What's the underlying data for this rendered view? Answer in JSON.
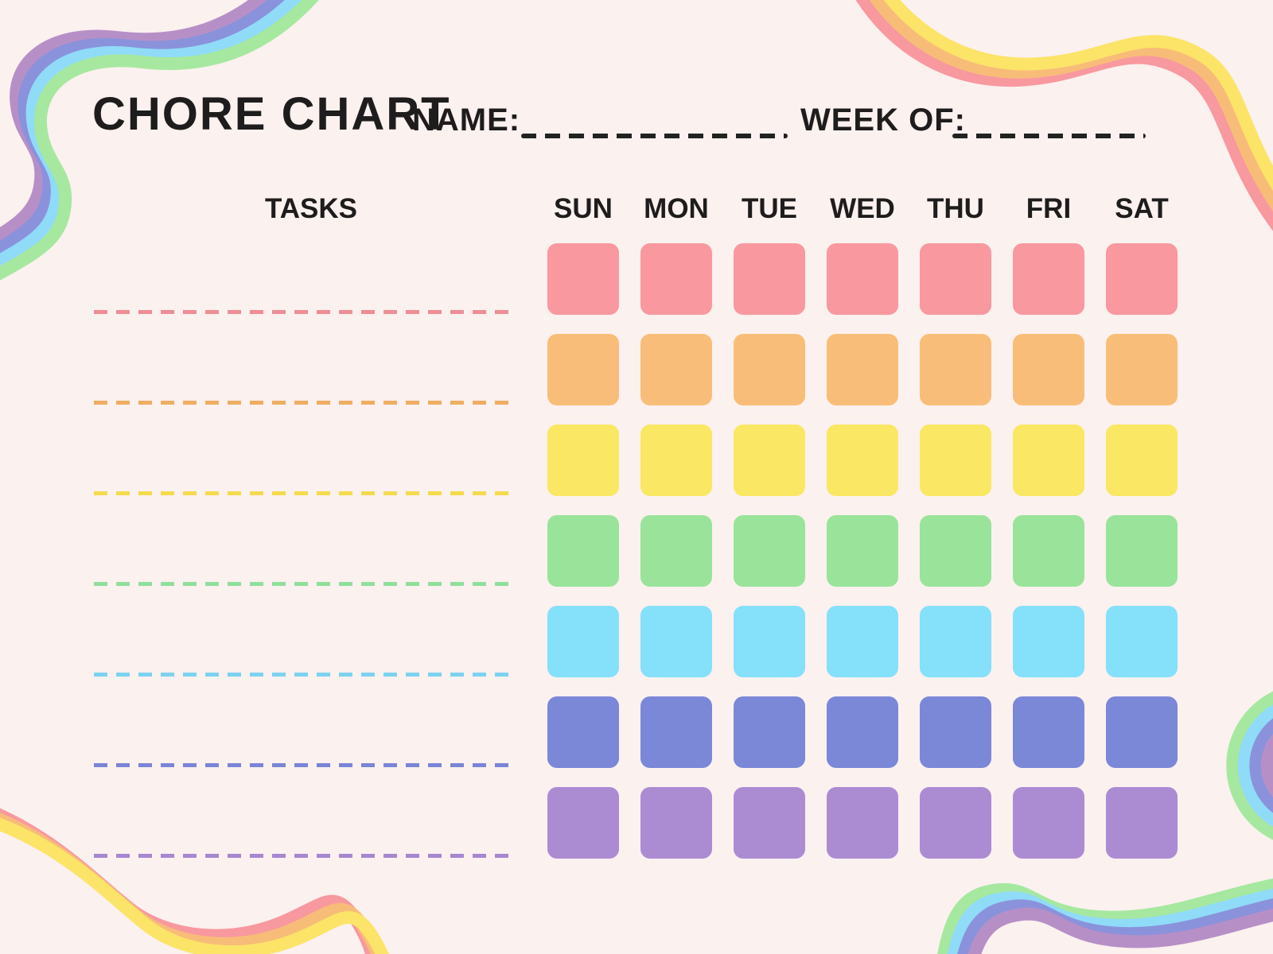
{
  "title": "CHORE CHART",
  "name_field": {
    "label": "NAME:",
    "value": ""
  },
  "week_field": {
    "label": "WEEK OF:",
    "value": ""
  },
  "tasks_header": "TASKS",
  "days": [
    "SUN",
    "MON",
    "TUE",
    "WED",
    "THU",
    "FRI",
    "SAT"
  ],
  "task_rows": [
    {
      "task": "",
      "cell_color": "#F9989F",
      "line_color": "#EF8E96"
    },
    {
      "task": "",
      "cell_color": "#F8BE79",
      "line_color": "#EFAE63"
    },
    {
      "task": "",
      "cell_color": "#FAE763",
      "line_color": "#F4DA4D"
    },
    {
      "task": "",
      "cell_color": "#99E49A",
      "line_color": "#90DF9C"
    },
    {
      "task": "",
      "cell_color": "#85E0FA",
      "line_color": "#7DD2EF"
    },
    {
      "task": "",
      "cell_color": "#7B87D7",
      "line_color": "#7A85D7"
    },
    {
      "task": "",
      "cell_color": "#AB8CD3",
      "line_color": "#A687D0"
    }
  ],
  "colors": {
    "background": "#FBF1EF",
    "text": "#1E1C1C",
    "write_line": "#222222",
    "ribbon_cool": {
      "purple": "#B78FC7",
      "periwinkle": "#8A92DB",
      "sky": "#90DBF8",
      "green": "#A6E8A0"
    },
    "ribbon_warm": {
      "pink": "#F8989F",
      "orange": "#F8BC79",
      "yellow": "#FBE468"
    }
  }
}
